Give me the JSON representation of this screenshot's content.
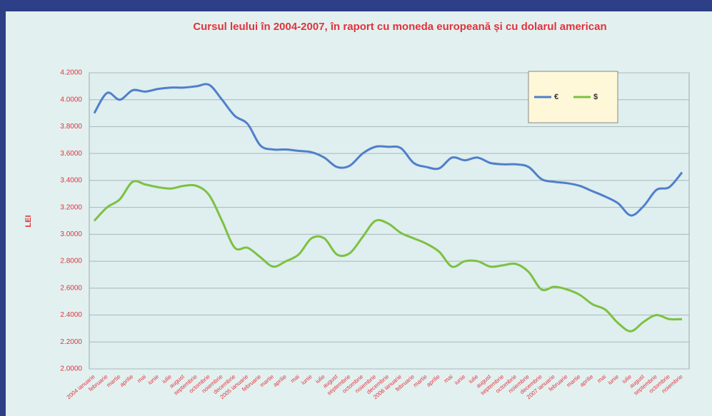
{
  "chart_data": {
    "type": "line",
    "title": "Cursul leului în 2004-2007, în raport cu moneda europeană și cu dolarul american",
    "y_label": "LEI",
    "categories": [
      "2004 ianuarie",
      "februarie",
      "martie",
      "aprilie",
      "mai",
      "iunie",
      "iulie",
      "august",
      "septembrie",
      "octombrie",
      "noiembrie",
      "decembrie",
      "2005 ianuarie",
      "februarie",
      "martie",
      "aprilie",
      "mai",
      "iunie",
      "iulie",
      "august",
      "septembrie",
      "octombrie",
      "noiembrie",
      "decembrie",
      "2006 ianuarie",
      "februarie",
      "martie",
      "aprilie",
      "mai",
      "iunie",
      "iulie",
      "august",
      "septembrie",
      "octombrie",
      "noiembrie",
      "decembrie",
      "2007 ianuarie",
      "februarie",
      "martie",
      "aprilie",
      "mai",
      "iunie",
      "iulie",
      "august",
      "septembrie",
      "octombrie",
      "noiembrie"
    ],
    "series": [
      {
        "name": "€",
        "color": "#4f7fcc",
        "values": [
          3.9,
          4.05,
          4.0,
          4.07,
          4.06,
          4.08,
          4.09,
          4.09,
          4.1,
          4.11,
          4.0,
          3.88,
          3.82,
          3.66,
          3.63,
          3.63,
          3.62,
          3.61,
          3.57,
          3.5,
          3.51,
          3.6,
          3.65,
          3.65,
          3.64,
          3.53,
          3.5,
          3.49,
          3.57,
          3.55,
          3.57,
          3.53,
          3.52,
          3.52,
          3.5,
          3.41,
          3.39,
          3.38,
          3.36,
          3.32,
          3.28,
          3.23,
          3.14,
          3.21,
          3.33,
          3.35,
          3.46
        ]
      },
      {
        "name": "$",
        "color": "#7cc142",
        "values": [
          3.1,
          3.2,
          3.26,
          3.39,
          3.37,
          3.35,
          3.34,
          3.36,
          3.36,
          3.29,
          3.1,
          2.9,
          2.9,
          2.83,
          2.76,
          2.8,
          2.85,
          2.97,
          2.97,
          2.85,
          2.86,
          2.98,
          3.1,
          3.08,
          3.01,
          2.97,
          2.93,
          2.87,
          2.76,
          2.8,
          2.8,
          2.76,
          2.77,
          2.78,
          2.72,
          2.59,
          2.61,
          2.59,
          2.55,
          2.48,
          2.44,
          2.34,
          2.28,
          2.35,
          2.4,
          2.37,
          2.37
        ]
      }
    ],
    "ylim": [
      2.0,
      4.2
    ],
    "yticks": [
      {
        "value": 2.0,
        "label": "2.0000"
      },
      {
        "value": 2.2,
        "label": "2.2000"
      },
      {
        "value": 2.4,
        "label": "2.4000"
      },
      {
        "value": 2.6,
        "label": "2.6000"
      },
      {
        "value": 2.8,
        "label": "2.8000"
      },
      {
        "value": 3.0,
        "label": "3.0000"
      },
      {
        "value": 3.2,
        "label": "3.2000"
      },
      {
        "value": 3.4,
        "label": "3.4000"
      },
      {
        "value": 3.6,
        "label": "3.6000"
      },
      {
        "value": 3.8,
        "label": "3.8000"
      },
      {
        "value": 4.0,
        "label": "4.0000"
      },
      {
        "value": 4.2,
        "label": "4.2000"
      }
    ],
    "grid": true,
    "legend": "top-right"
  }
}
